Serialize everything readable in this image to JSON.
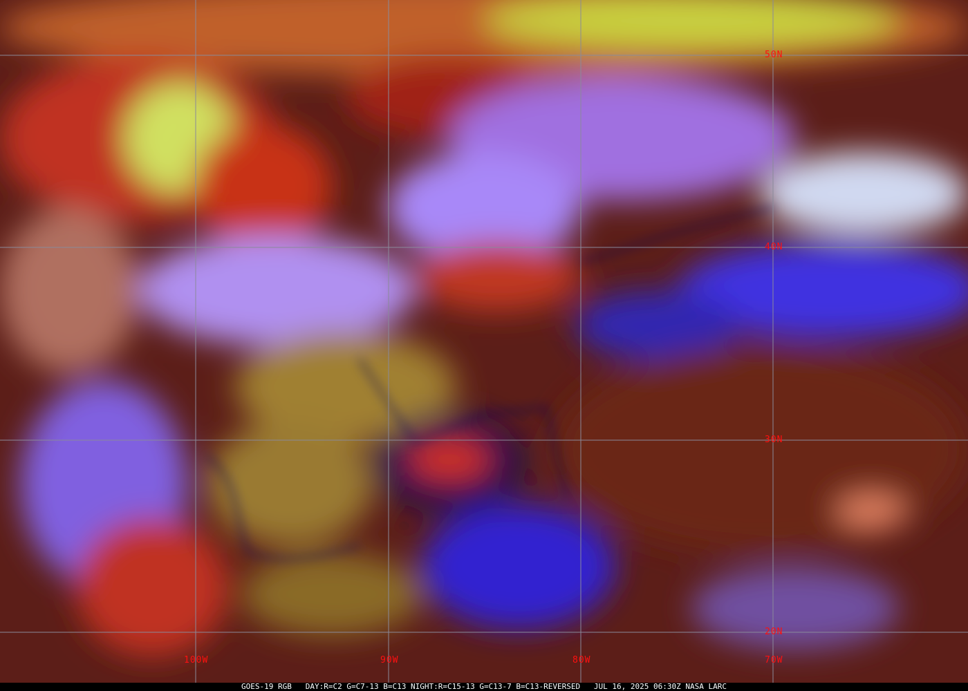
{
  "image": {
    "caption": "GOES-19 RGB   DAY:R=C2 G=C7-13 B=C13 NIGHT:R=C15-13 G=C13-7 B=C13-REVERSED   JUL 16, 2025 06:30Z NASA LARC",
    "latitude_labels": [
      "50N",
      "40N",
      "30N",
      "20N"
    ],
    "longitude_labels": [
      "100W",
      "90W",
      "80W",
      "70W"
    ],
    "colors": {
      "grid": "#8a8a9a",
      "labels": "#ff1010",
      "borders": "#101060",
      "ocean": "#6a2a1a",
      "clouds_cold": "#9a70ff",
      "clouds_high": "#e03020",
      "clear_land": "#a08030"
    }
  }
}
